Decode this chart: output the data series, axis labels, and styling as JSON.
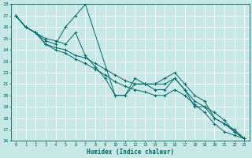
{
  "title": "",
  "xlabel": "Humidex (Indice chaleur)",
  "ylabel": "",
  "background_color": "#c8e8e8",
  "grid_color": "#ffffff",
  "line_color": "#006666",
  "x_range": [
    -0.5,
    23.5
  ],
  "y_range": [
    16,
    28
  ],
  "lines": [
    {
      "x": [
        0,
        1,
        2,
        3,
        4,
        5,
        6,
        7,
        10,
        11,
        12,
        13,
        14,
        15,
        16,
        17,
        18,
        19,
        20,
        21,
        22,
        23
      ],
      "y": [
        27,
        26,
        25.5,
        24.8,
        24.5,
        26,
        27,
        28,
        20,
        20,
        21.5,
        21,
        21,
        21.5,
        22,
        21,
        20,
        19.5,
        18,
        17.5,
        17,
        16.2
      ]
    },
    {
      "x": [
        0,
        1,
        2,
        3,
        4,
        5,
        6,
        7,
        8,
        9,
        10,
        11,
        12,
        13,
        14,
        15,
        16,
        17,
        18,
        19,
        20,
        21,
        22,
        23
      ],
      "y": [
        27,
        26,
        25.5,
        25,
        24.8,
        24.5,
        25.5,
        23.5,
        22.5,
        21.5,
        20,
        20,
        21,
        21,
        21,
        21,
        21.5,
        20.5,
        19,
        19,
        18.5,
        17.8,
        16.8,
        16.2
      ]
    },
    {
      "x": [
        0,
        1,
        2,
        3,
        4,
        5,
        6,
        7,
        8,
        9,
        10,
        11,
        12,
        13,
        14,
        15,
        16,
        17,
        18,
        19,
        20,
        21,
        22,
        23
      ],
      "y": [
        27,
        26,
        25.5,
        24.5,
        24.2,
        24.0,
        23.5,
        23.3,
        22.8,
        22.3,
        21.8,
        21.3,
        21.0,
        21.0,
        20.5,
        20.5,
        21.5,
        20.5,
        19.5,
        19.0,
        18.0,
        17.5,
        16.8,
        16.2
      ]
    },
    {
      "x": [
        0,
        1,
        2,
        3,
        4,
        5,
        6,
        7,
        8,
        9,
        10,
        11,
        12,
        13,
        14,
        15,
        16,
        17,
        18,
        19,
        20,
        21,
        22,
        23
      ],
      "y": [
        27,
        26,
        25.5,
        24.5,
        24.0,
        23.7,
        23.2,
        22.8,
        22.3,
        21.8,
        21.2,
        20.8,
        20.5,
        20.3,
        20.0,
        20.0,
        20.5,
        20.0,
        19.2,
        18.5,
        17.5,
        16.8,
        16.5,
        16.2
      ]
    }
  ]
}
